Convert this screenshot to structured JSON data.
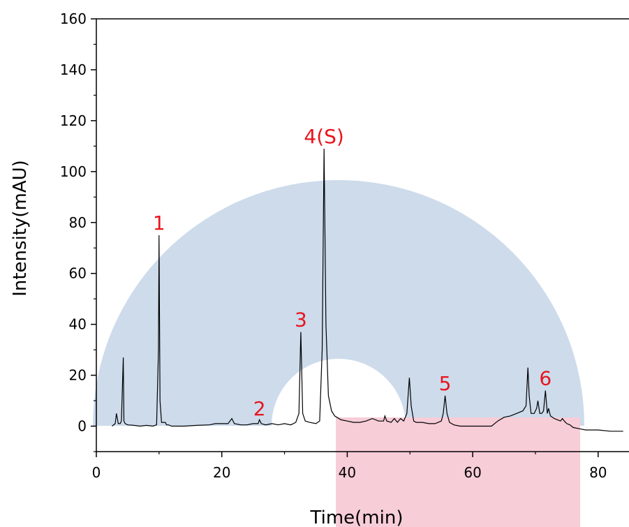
{
  "chart_data": {
    "type": "line",
    "title": "",
    "xlabel": "Time(min)",
    "ylabel": "Intensity(mAU)",
    "xlim": [
      0,
      84
    ],
    "ylim": [
      -10,
      160
    ],
    "x_ticks": [
      "0",
      "20",
      "40",
      "60",
      "80"
    ],
    "y_ticks": [
      "0",
      "20",
      "40",
      "60",
      "80",
      "100",
      "120",
      "140",
      "160"
    ],
    "line_color": "#000000",
    "label_color": "#e8141c",
    "watermark_colors": {
      "ring": "#cddbeb",
      "block": "#f7cdd8"
    },
    "peaks": [
      {
        "label": "1",
        "x": 10.0,
        "y": 75
      },
      {
        "label": "2",
        "x": 26.0,
        "y": 2
      },
      {
        "label": "3",
        "x": 32.6,
        "y": 37
      },
      {
        "label": "4(S)",
        "x": 36.3,
        "y": 109
      },
      {
        "label": "5",
        "x": 55.6,
        "y": 12
      },
      {
        "label": "6",
        "x": 71.6,
        "y": 14
      }
    ],
    "series": [
      {
        "x": [
          2.5,
          3.0,
          3.2,
          3.5,
          3.8,
          4.0,
          4.3,
          4.4,
          4.6,
          5.0,
          6.0,
          7.0,
          8.0,
          9.0,
          9.6,
          9.9,
          10.0,
          10.15,
          10.4,
          11.0,
          11.2,
          11.5,
          12.0,
          14.0,
          16.0,
          18.0,
          19.0,
          20.0,
          21.0,
          21.6,
          22.0,
          23.0,
          24.0,
          25.0,
          25.8,
          26.0,
          26.3,
          27.0,
          28.0,
          29.0,
          30.0,
          31.0,
          31.8,
          32.3,
          32.6,
          32.9,
          33.3,
          34.0,
          35.0,
          35.6,
          36.0,
          36.3,
          36.6,
          37.0,
          37.5,
          38.0,
          39.0,
          40.0,
          41.0,
          42.0,
          43.0,
          44.0,
          45.0,
          45.8,
          46.0,
          46.3,
          47.0,
          47.5,
          48.0,
          48.5,
          49.0,
          49.5,
          49.9,
          50.2,
          50.6,
          51.0,
          52.0,
          53.0,
          54.0,
          55.0,
          55.3,
          55.6,
          55.9,
          56.3,
          57.0,
          58.0,
          59.0,
          60.0,
          61.0,
          62.0,
          63.0,
          64.0,
          65.0,
          66.0,
          67.0,
          68.0,
          68.5,
          68.8,
          69.0,
          69.3,
          69.8,
          70.2,
          70.4,
          70.7,
          71.0,
          71.3,
          71.6,
          71.9,
          72.1,
          72.4,
          73.0,
          74.0,
          74.3,
          74.6,
          75.0,
          75.5,
          76.0,
          77.0,
          78.0,
          80.0,
          82.0,
          84.0
        ],
        "y": [
          0,
          1,
          5,
          1,
          1,
          2,
          27,
          2,
          1,
          0.5,
          0.3,
          0,
          0.3,
          0,
          0.5,
          30,
          75,
          10,
          1.5,
          1.5,
          0.5,
          0.5,
          0,
          0,
          0.3,
          0.5,
          1,
          1,
          1,
          3,
          1,
          0.5,
          0.5,
          1,
          1,
          2.5,
          1,
          0.5,
          1,
          0.5,
          1,
          0.5,
          1.5,
          5,
          37,
          5,
          2,
          1.5,
          1,
          2,
          30,
          109,
          40,
          12,
          6,
          4,
          2.5,
          2,
          1.5,
          1.5,
          2,
          3,
          2,
          2,
          4,
          2,
          1.5,
          3,
          1.5,
          3,
          2,
          5,
          19,
          8,
          2,
          1.5,
          1.5,
          1,
          1,
          2,
          5,
          12,
          5,
          1.5,
          0.5,
          0,
          0,
          0,
          0,
          0,
          0,
          2,
          3.5,
          4,
          5,
          6,
          8,
          23,
          12,
          5,
          5,
          7,
          10,
          5,
          5,
          6,
          14,
          5,
          7,
          4,
          3,
          2,
          3,
          2,
          1,
          0.5,
          -0.5,
          -1,
          -1.5,
          -1.5,
          -2,
          -2
        ]
      }
    ]
  }
}
